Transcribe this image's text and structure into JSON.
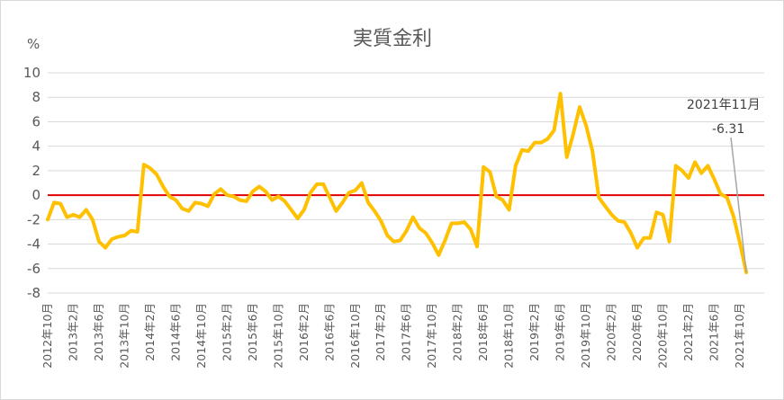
{
  "chart_data": {
    "type": "line",
    "title": "実質金利",
    "y_unit": "%",
    "ylim": [
      -8,
      10
    ],
    "y_ticks": [
      10,
      8,
      6,
      4,
      2,
      0,
      -2,
      -4,
      -6,
      -8
    ],
    "x_tick_labels": [
      "2012年10月",
      "2013年2月",
      "2013年6月",
      "2013年10月",
      "2014年2月",
      "2014年6月",
      "2014年10月",
      "2015年2月",
      "2015年6月",
      "2015年10月",
      "2016年2月",
      "2016年6月",
      "2016年10月",
      "2017年2月",
      "2017年6月",
      "2017年10月",
      "2018年2月",
      "2018年6月",
      "2018年10月",
      "2019年2月",
      "2019年6月",
      "2019年10月",
      "2020年2月",
      "2020年6月",
      "2020年10月",
      "2021年2月",
      "2021年6月",
      "2021年10月"
    ],
    "x_start": "2012年10月",
    "x_end": "2021年11月",
    "series": [
      {
        "color": "#ffc000",
        "values": [
          -2.0,
          -0.6,
          -0.7,
          -1.8,
          -1.6,
          -1.8,
          -1.2,
          -2.0,
          -3.8,
          -4.3,
          -3.6,
          -3.4,
          -3.3,
          -2.9,
          -3.0,
          2.5,
          2.2,
          1.7,
          0.7,
          -0.1,
          -0.4,
          -1.1,
          -1.3,
          -0.6,
          -0.7,
          -0.9,
          0.1,
          0.5,
          0.0,
          -0.1,
          -0.4,
          -0.5,
          0.3,
          0.7,
          0.3,
          -0.4,
          -0.1,
          -0.5,
          -1.2,
          -1.9,
          -1.2,
          0.2,
          0.9,
          0.9,
          -0.2,
          -1.3,
          -0.6,
          0.2,
          0.4,
          1.0,
          -0.6,
          -1.3,
          -2.1,
          -3.3,
          -3.8,
          -3.7,
          -2.9,
          -1.8,
          -2.7,
          -3.1,
          -3.9,
          -4.9,
          -3.7,
          -2.3,
          -2.3,
          -2.2,
          -2.8,
          -4.2,
          2.3,
          1.9,
          -0.1,
          -0.4,
          -1.2,
          2.4,
          3.7,
          3.6,
          4.3,
          4.3,
          4.6,
          5.3,
          8.3,
          3.1,
          5.0,
          7.2,
          5.7,
          3.6,
          -0.2,
          -0.9,
          -1.6,
          -2.1,
          -2.2,
          -3.1,
          -4.3,
          -3.5,
          -3.5,
          -1.4,
          -1.6,
          -3.8,
          2.4,
          2.0,
          1.4,
          2.7,
          1.8,
          2.4,
          1.3,
          0.1,
          -0.2,
          -1.7,
          -3.9,
          -6.31
        ]
      }
    ],
    "reference_line": {
      "y": 0,
      "color": "#e00000"
    },
    "annotation": {
      "label": "2021年11月",
      "value": "-6.31"
    }
  }
}
